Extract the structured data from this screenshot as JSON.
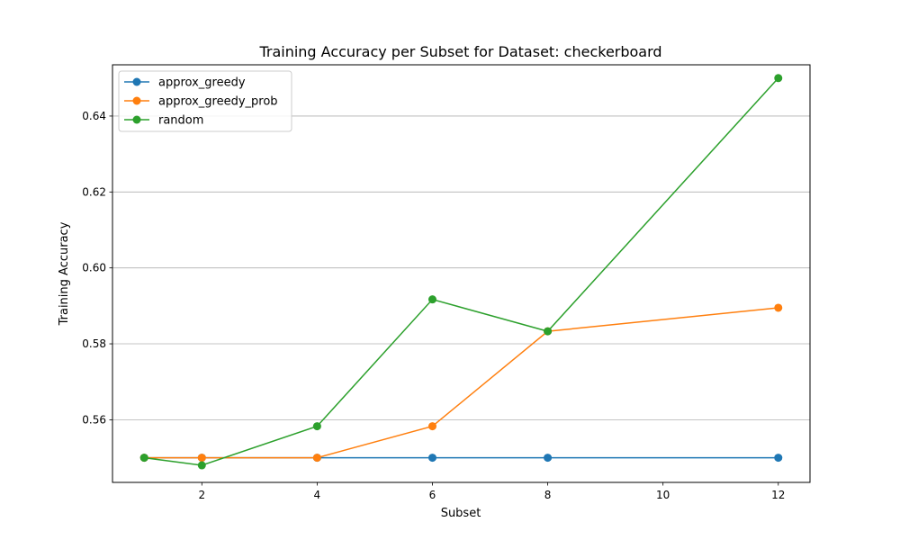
{
  "chart_data": {
    "type": "line",
    "title": "Training Accuracy per Subset for Dataset: checkerboard",
    "xlabel": "Subset",
    "ylabel": "Training Accuracy",
    "xlim": [
      0.45,
      12.55
    ],
    "ylim": [
      0.5435,
      0.6535
    ],
    "xticks": [
      2,
      4,
      6,
      8,
      10,
      12
    ],
    "yticks": [
      0.56,
      0.58,
      0.6,
      0.62,
      0.64
    ],
    "ytick_labels": [
      "0.56",
      "0.58",
      "0.60",
      "0.62",
      "0.64"
    ],
    "grid": "y",
    "legend_position": "top-left",
    "x": [
      1,
      2,
      4,
      6,
      8,
      12
    ],
    "series": [
      {
        "name": "approx_greedy",
        "color": "#1f77b4",
        "values": [
          0.55,
          0.55,
          0.55,
          0.55,
          0.55,
          0.55
        ]
      },
      {
        "name": "approx_greedy_prob",
        "color": "#ff7f0e",
        "values": [
          0.55,
          0.55,
          0.55,
          0.5583,
          0.5833,
          0.5895
        ]
      },
      {
        "name": "random",
        "color": "#2ca02c",
        "values": [
          0.55,
          0.548,
          0.5583,
          0.5917,
          0.5833,
          0.65
        ]
      }
    ]
  }
}
